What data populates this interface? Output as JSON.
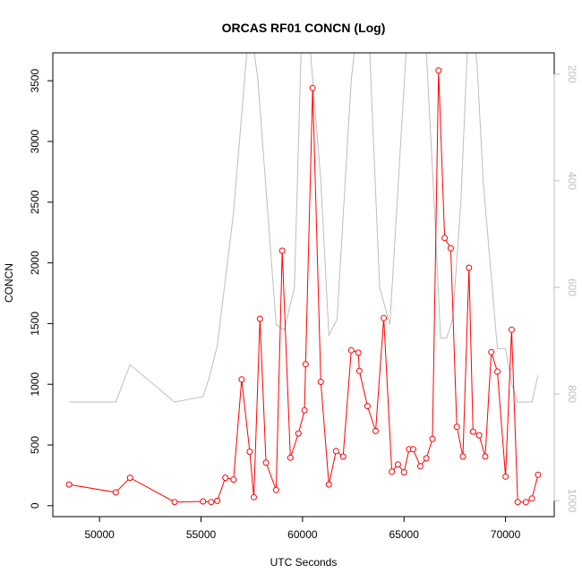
{
  "chart_data": {
    "type": "line",
    "title": "ORCAS RF01 CONCN (Log)",
    "xlabel": "UTC Seconds",
    "ylabel": "CONCN",
    "xlim": [
      47700,
      72400
    ],
    "ylim": [
      -90,
      3730
    ],
    "y2lim": [
      1030,
      160
    ],
    "x_ticks": [
      50000,
      55000,
      60000,
      65000,
      70000
    ],
    "y_ticks": [
      0,
      500,
      1000,
      1500,
      2000,
      2500,
      3000,
      3500
    ],
    "y2_ticks": [
      200,
      400,
      600,
      800,
      1000
    ],
    "colors": {
      "primary": "#ff0000",
      "secondary": "#bebebe",
      "axis": "#000000"
    },
    "primary_series": {
      "x": [
        48500,
        50800,
        51500,
        53700,
        55100,
        55500,
        55800,
        56200,
        56600,
        57000,
        57400,
        57600,
        57900,
        58200,
        58700,
        59000,
        59400,
        59800,
        60100,
        60150,
        60500,
        60900,
        61300,
        61650,
        62000,
        62400,
        62750,
        62800,
        63200,
        63600,
        64000,
        64400,
        64700,
        65000,
        65250,
        65450,
        65800,
        66100,
        66400,
        66700,
        67000,
        67300,
        67600,
        67900,
        68200,
        68400,
        68700,
        69000,
        69300,
        69600,
        70000,
        70300,
        70600,
        71000,
        71300,
        71600
      ],
      "y": [
        175,
        110,
        230,
        30,
        35,
        30,
        40,
        230,
        215,
        1040,
        445,
        70,
        1540,
        355,
        130,
        2100,
        395,
        595,
        785,
        1165,
        3440,
        1020,
        175,
        450,
        405,
        1280,
        1260,
        1110,
        820,
        615,
        1545,
        280,
        340,
        275,
        465,
        465,
        325,
        390,
        550,
        3585,
        2205,
        2120,
        650,
        405,
        1960,
        610,
        580,
        405,
        1265,
        1105,
        240,
        1450,
        30,
        30,
        60,
        255
      ]
    },
    "secondary_series": {
      "x": [
        48500,
        50800,
        51500,
        53700,
        55100,
        55400,
        55800,
        56600,
        57400,
        57800,
        58700,
        59100,
        59600,
        60000,
        60400,
        60900,
        61300,
        61700,
        62400,
        62800,
        63300,
        63800,
        64300,
        65100,
        65600,
        66100,
        66500,
        66800,
        67100,
        67400,
        67800,
        68200,
        68600,
        68900,
        69600,
        70000,
        70300,
        70600,
        71300,
        71600
      ],
      "y": [
        815,
        815,
        745,
        815,
        805,
        770,
        710,
        460,
        95,
        210,
        670,
        680,
        600,
        60,
        160,
        400,
        690,
        660,
        210,
        80,
        150,
        600,
        670,
        160,
        110,
        160,
        450,
        695,
        695,
        660,
        440,
        80,
        180,
        400,
        715,
        715,
        780,
        815,
        815,
        765
      ]
    }
  }
}
